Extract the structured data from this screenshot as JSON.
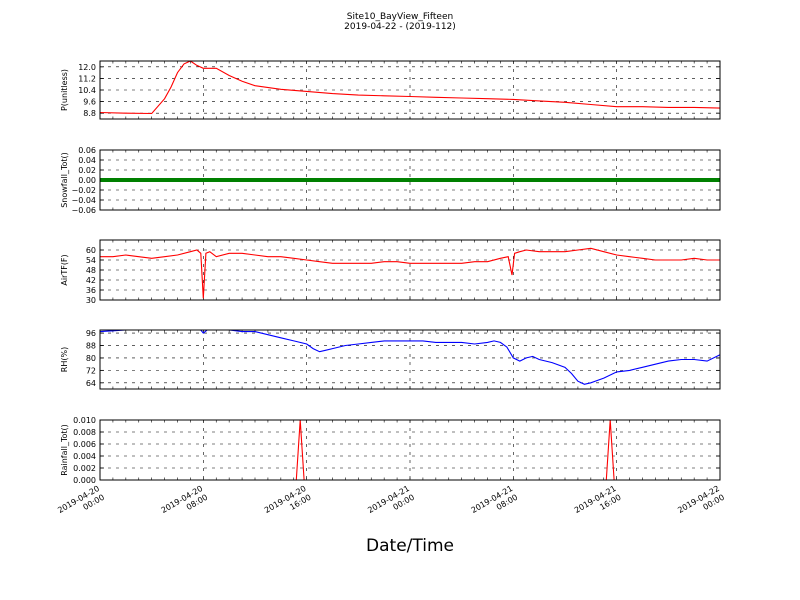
{
  "figure": {
    "title_line1": "Site10_BayView_Fifteen",
    "title_line2": "2019-04-22 - (2019-112)",
    "xlabel": "Date/Time",
    "xticks": [
      {
        "d": "2019-04-20",
        "t": "00:00"
      },
      {
        "d": "2019-04-20",
        "t": "08:00"
      },
      {
        "d": "2019-04-20",
        "t": "16:00"
      },
      {
        "d": "2019-04-21",
        "t": "00:00"
      },
      {
        "d": "2019-04-21",
        "t": "08:00"
      },
      {
        "d": "2019-04-21",
        "t": "16:00"
      },
      {
        "d": "2019-04-22",
        "t": "00:00"
      }
    ]
  },
  "chart_data": [
    {
      "type": "line",
      "ylabel": "P(unitless)",
      "color": "#ff0000",
      "ylim": [
        8.4,
        12.4
      ],
      "yticks": [
        "8.8",
        "9.6",
        "10.4",
        "11.2",
        "12.0"
      ],
      "x_hours": [
        0,
        2,
        4,
        5,
        5.5,
        6,
        6.5,
        7,
        7.5,
        8,
        9,
        10,
        11,
        12,
        14,
        16,
        18,
        20,
        22,
        24,
        26,
        28,
        30,
        32,
        34,
        36,
        38,
        40,
        42,
        44,
        46,
        48
      ],
      "values": [
        8.85,
        8.8,
        8.78,
        9.8,
        10.6,
        11.6,
        12.2,
        12.4,
        12.1,
        11.9,
        11.9,
        11.4,
        11.0,
        10.7,
        10.45,
        10.3,
        10.15,
        10.05,
        10.0,
        9.95,
        9.9,
        9.85,
        9.8,
        9.75,
        9.65,
        9.55,
        9.4,
        9.25,
        9.25,
        9.2,
        9.2,
        9.15
      ]
    },
    {
      "type": "line",
      "ylabel": "Snowfall_Tot()",
      "color": "#008000",
      "ylim": [
        -0.06,
        0.06
      ],
      "yticks": [
        "−0.06",
        "−0.04",
        "−0.02",
        "0.00",
        "0.02",
        "0.04",
        "0.06"
      ],
      "x_hours": [
        0,
        48
      ],
      "values": [
        0,
        0
      ]
    },
    {
      "type": "line",
      "ylabel": "AirTF(F)",
      "color": "#ff0000",
      "ylim": [
        30,
        66
      ],
      "yticks": [
        "30",
        "36",
        "42",
        "48",
        "54",
        "60"
      ],
      "x_hours": [
        0,
        1,
        2,
        3,
        4,
        5,
        6,
        7,
        7.5,
        7.8,
        8.0,
        8.2,
        8.5,
        9,
        10,
        11,
        12,
        13,
        14,
        15,
        16,
        17,
        18,
        19,
        20,
        21,
        22,
        23,
        24,
        25,
        26,
        27,
        28,
        29,
        30,
        31,
        31.6,
        31.9,
        32.1,
        32.5,
        33,
        34,
        35,
        36,
        37,
        38,
        39,
        40,
        41,
        42,
        43,
        44,
        45,
        46,
        47,
        48
      ],
      "values": [
        56,
        56,
        57,
        56,
        55,
        56,
        57,
        59,
        60,
        58,
        31,
        58,
        59,
        56,
        58,
        58,
        57,
        56,
        56,
        55,
        54,
        53,
        52,
        52,
        52,
        52,
        53,
        53,
        52,
        52,
        52,
        52,
        52,
        53,
        53,
        55,
        56,
        45,
        58,
        59,
        60,
        59,
        59,
        59,
        60,
        61,
        59,
        57,
        56,
        55,
        54,
        54,
        54,
        55,
        54,
        54
      ]
    },
    {
      "type": "line",
      "ylabel": "RH(%)",
      "color": "#0000ff",
      "ylim": [
        60,
        98
      ],
      "yticks": [
        "64",
        "72",
        "80",
        "88",
        "96"
      ],
      "x_hours": [
        0,
        1,
        2,
        3,
        4,
        5,
        6,
        7,
        7.8,
        8.0,
        8.3,
        9,
        10,
        11,
        12,
        13,
        14,
        15,
        16,
        16.5,
        17,
        17.5,
        18,
        19,
        20,
        21,
        22,
        23,
        24,
        25,
        26,
        27,
        28,
        29,
        30,
        30.5,
        31,
        31.5,
        32,
        32.5,
        33,
        33.5,
        34,
        35,
        36,
        36.5,
        37,
        37.5,
        38,
        39,
        40,
        41,
        42,
        43,
        44,
        45,
        46,
        47,
        48
      ],
      "values": [
        97,
        97.5,
        98,
        98,
        98,
        98,
        98,
        98,
        98,
        96,
        98,
        98,
        98,
        97,
        97,
        95,
        93,
        91,
        89,
        86,
        84,
        85,
        86,
        88,
        89,
        90,
        91,
        91,
        91,
        91,
        90,
        90,
        90,
        89,
        90,
        91,
        90,
        87,
        80,
        78,
        80,
        81,
        79,
        77,
        74,
        70,
        65,
        63,
        64,
        67,
        71,
        72,
        74,
        76,
        78,
        79,
        79,
        78,
        82
      ]
    },
    {
      "type": "line",
      "ylabel": "Rainfall_Tot()",
      "color": "#ff0000",
      "ylim": [
        0,
        0.01
      ],
      "yticks": [
        "0.000",
        "0.002",
        "0.004",
        "0.006",
        "0.008",
        "0.010"
      ],
      "x_hours": [
        0,
        15.2,
        15.5,
        15.8,
        39.2,
        39.5,
        39.8,
        48
      ],
      "values": [
        0,
        0,
        0.01,
        0,
        0,
        0.01,
        0,
        0
      ]
    }
  ]
}
